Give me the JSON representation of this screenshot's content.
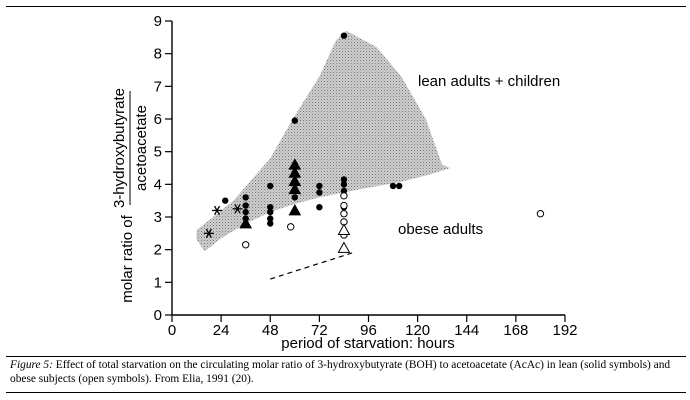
{
  "chart_data": {
    "type": "scatter",
    "xlabel": "period of starvation: hours",
    "ylabel_prefix": "molar ratio of",
    "ylabel_numerator": "3-hydroxybutyrate",
    "ylabel_denominator": "acetoacetate",
    "xlim": [
      0,
      192
    ],
    "ylim": [
      0,
      9
    ],
    "xticks": [
      "0",
      "24",
      "48",
      "72",
      "96",
      "120",
      "144",
      "168",
      "192"
    ],
    "xtick_values": [
      0,
      24,
      48,
      72,
      96,
      120,
      144,
      168,
      192
    ],
    "yticks": [
      "0",
      "1",
      "2",
      "3",
      "4",
      "5",
      "6",
      "7",
      "8",
      "9"
    ],
    "ytick_values": [
      0,
      1,
      2,
      3,
      4,
      5,
      6,
      7,
      8,
      9
    ],
    "grid": false,
    "annotations": {
      "lean": "lean adults + children",
      "obese": "obese adults"
    },
    "lean_region": {
      "upper": [
        [
          12,
          2.6
        ],
        [
          30,
          3.5
        ],
        [
          48,
          4.8
        ],
        [
          60,
          6.1
        ],
        [
          72,
          7.3
        ],
        [
          80,
          8.4
        ],
        [
          85,
          8.7
        ],
        [
          100,
          8.2
        ],
        [
          112,
          7.3
        ],
        [
          124,
          6.0
        ],
        [
          132,
          4.6
        ]
      ],
      "lower": [
        [
          136,
          4.5
        ],
        [
          126,
          4.3
        ],
        [
          110,
          4.05
        ],
        [
          96,
          3.9
        ],
        [
          84,
          3.75
        ],
        [
          72,
          3.6
        ],
        [
          60,
          3.4
        ],
        [
          48,
          3.15
        ],
        [
          36,
          2.8
        ],
        [
          24,
          2.35
        ],
        [
          16,
          1.95
        ],
        [
          12,
          2.3
        ]
      ]
    },
    "series": [
      {
        "name": "lean (solid symbols)",
        "style": "solid",
        "circles": [
          [
            26,
            3.5
          ],
          [
            36,
            3.6
          ],
          [
            36,
            3.35
          ],
          [
            36,
            3.15
          ],
          [
            36,
            2.95
          ],
          [
            48,
            3.95
          ],
          [
            48,
            3.3
          ],
          [
            48,
            3.15
          ],
          [
            48,
            2.95
          ],
          [
            48,
            2.8
          ],
          [
            60,
            5.95
          ],
          [
            60,
            3.6
          ],
          [
            72,
            3.95
          ],
          [
            72,
            3.75
          ],
          [
            72,
            3.3
          ],
          [
            84,
            8.55
          ],
          [
            84,
            4.15
          ],
          [
            84,
            4.0
          ],
          [
            84,
            3.8
          ],
          [
            84,
            3.3
          ],
          [
            108,
            3.95
          ],
          [
            111,
            3.95
          ]
        ],
        "triangles": [
          [
            36,
            2.8
          ],
          [
            60,
            4.6
          ],
          [
            60,
            4.35
          ],
          [
            60,
            4.1
          ],
          [
            60,
            3.85
          ],
          [
            60,
            3.2
          ]
        ]
      },
      {
        "name": "obese (open symbols)",
        "style": "open",
        "circles": [
          [
            36,
            2.15
          ],
          [
            58,
            2.7
          ],
          [
            84,
            3.65
          ],
          [
            84,
            3.35
          ],
          [
            84,
            3.1
          ],
          [
            84,
            2.85
          ],
          [
            84,
            2.45
          ],
          [
            180,
            3.1
          ]
        ],
        "triangles": [
          [
            84,
            2.6
          ],
          [
            84,
            2.05
          ]
        ]
      }
    ],
    "asterisks": [
      [
        22,
        3.2
      ],
      [
        32,
        3.25
      ],
      [
        18,
        2.5
      ]
    ],
    "dashed_line": [
      [
        48,
        1.1
      ],
      [
        88,
        1.9
      ]
    ]
  },
  "caption": {
    "prefix": "Figure 5:",
    "text": " Effect of total starvation on the circulating molar ratio of 3-hydroxybutyrate (BOH) to acetoacetate (AcAc) in lean (solid symbols) and obese subjects (open symbols). From Elia, 1991 (20)."
  }
}
